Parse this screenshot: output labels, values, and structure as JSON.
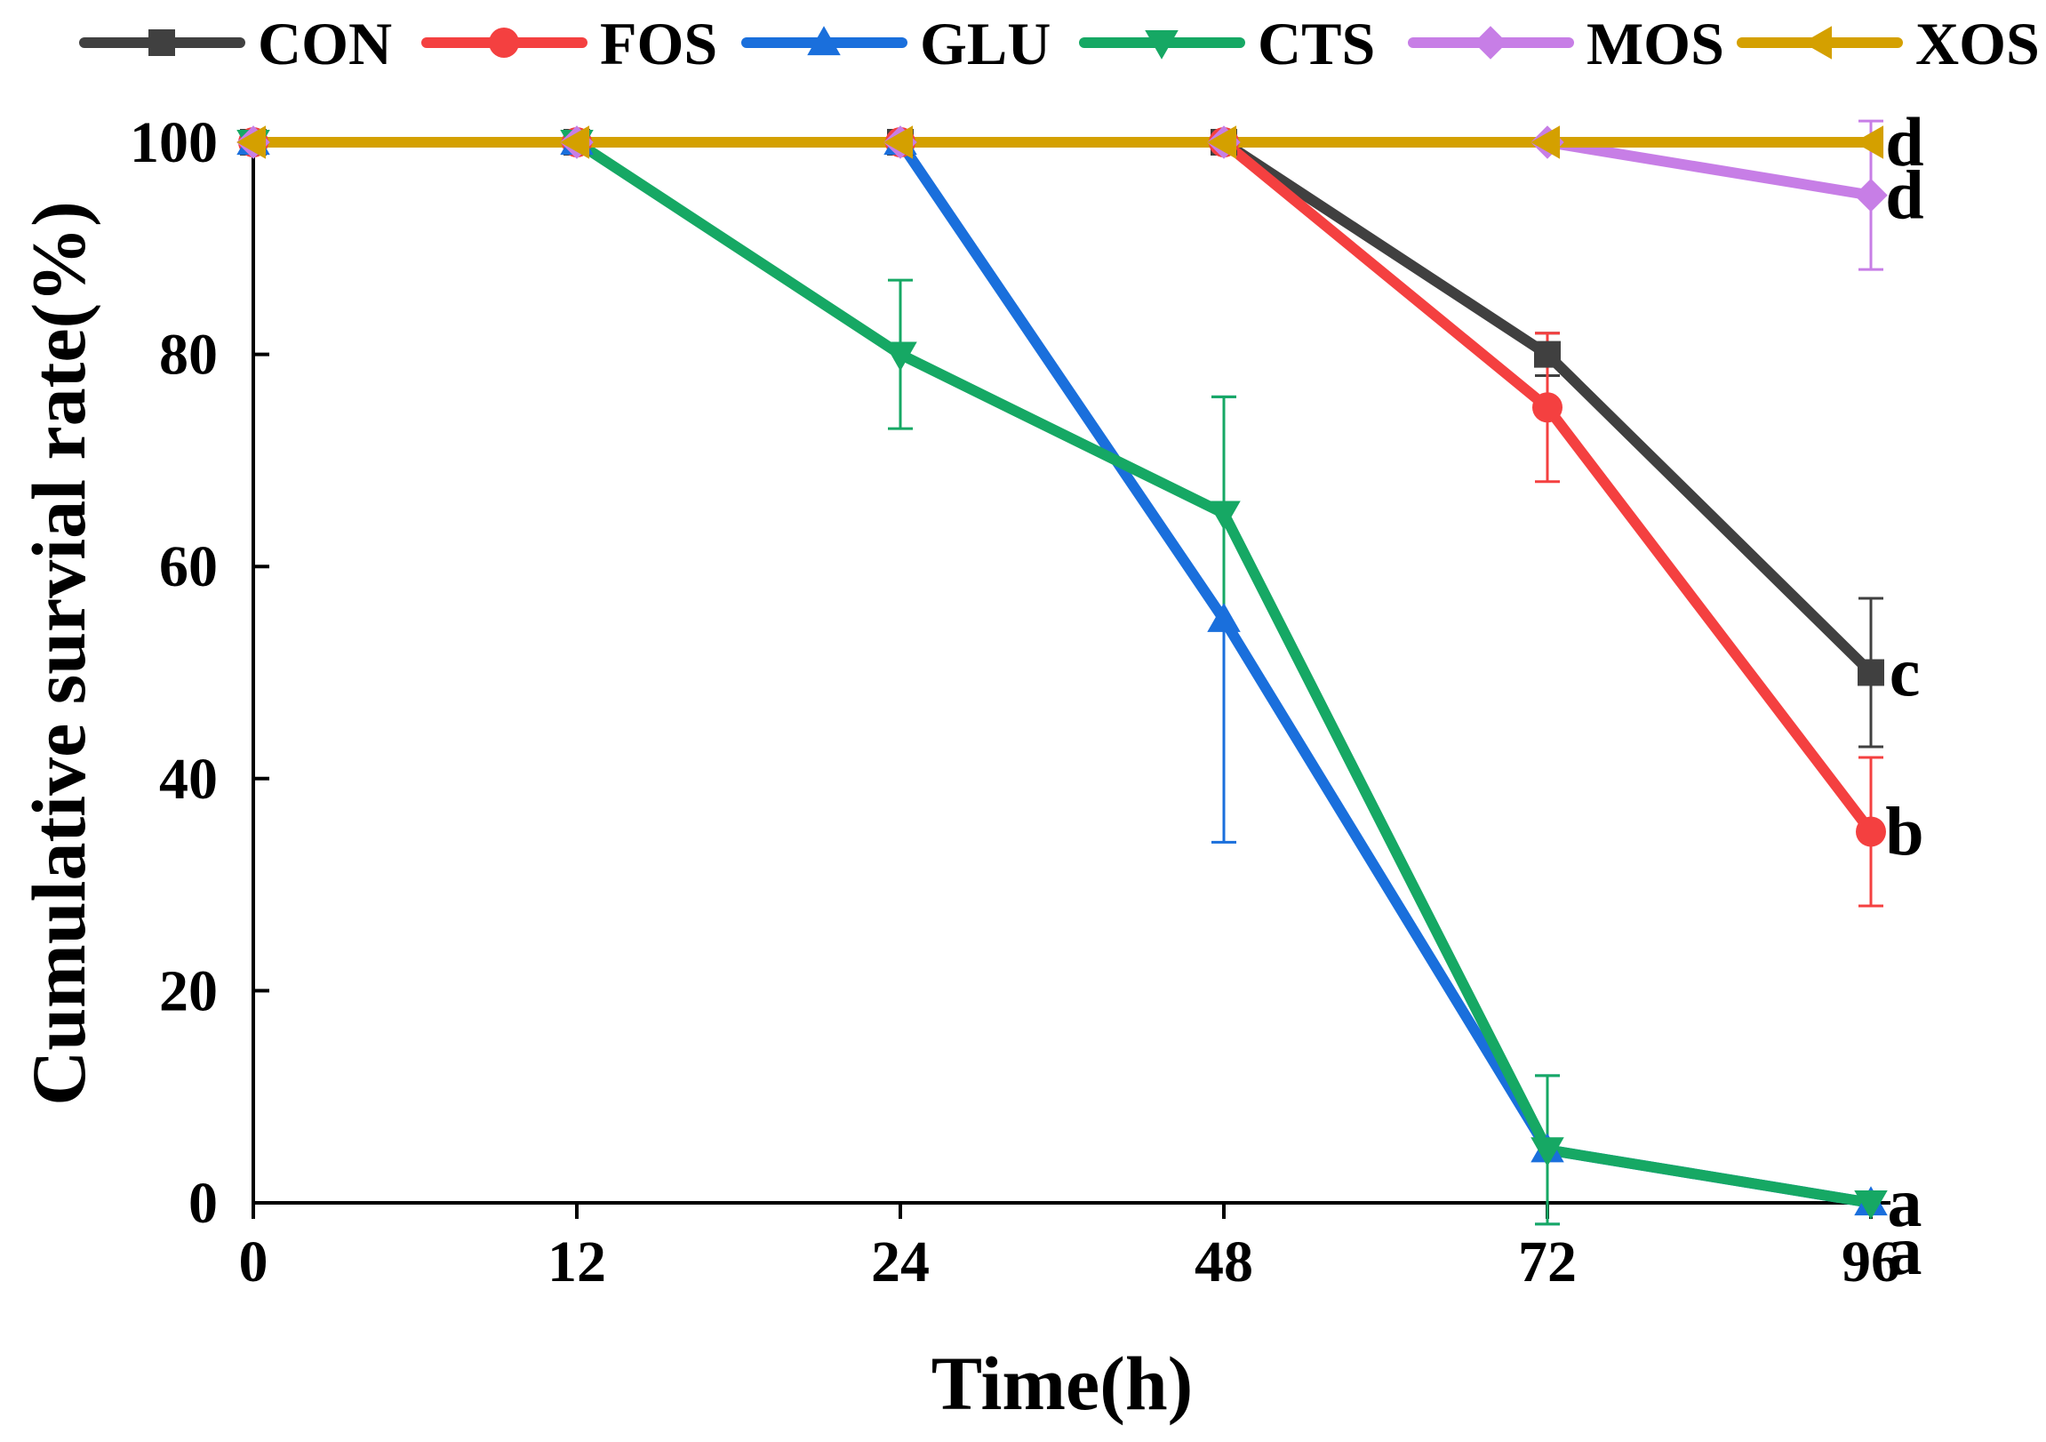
{
  "chart_data": {
    "type": "line",
    "xlabel": "Time(h)",
    "ylabel": "Cumulative survial rate(%)",
    "ylim": [
      0,
      100
    ],
    "x_ticks": [
      "0",
      "12",
      "24",
      "48",
      "72",
      "96"
    ],
    "y_ticks": [
      0,
      20,
      40,
      60,
      80,
      100
    ],
    "legend_position": "top",
    "grid": false,
    "series": [
      {
        "name": "CON",
        "color": "#404040",
        "marker": "square",
        "values": [
          100,
          100,
          100,
          100,
          80,
          50
        ],
        "errors": [
          0,
          0,
          0,
          0,
          2,
          7
        ],
        "sig_label": "c"
      },
      {
        "name": "FOS",
        "color": "#f44040",
        "marker": "circle",
        "values": [
          100,
          100,
          100,
          100,
          75,
          35
        ],
        "errors": [
          0,
          0,
          0,
          0,
          7,
          7
        ],
        "sig_label": "b"
      },
      {
        "name": "GLU",
        "color": "#1a6fdc",
        "marker": "triangle-up",
        "values": [
          100,
          100,
          100,
          55,
          5,
          0
        ],
        "errors": [
          0,
          0,
          0,
          21,
          7,
          0
        ],
        "sig_label": "a"
      },
      {
        "name": "CTS",
        "color": "#16a864",
        "marker": "triangle-down",
        "values": [
          100,
          100,
          80,
          65,
          5,
          0
        ],
        "errors": [
          0,
          0,
          7,
          11,
          7,
          0
        ],
        "sig_label": "a"
      },
      {
        "name": "MOS",
        "color": "#c77ee6",
        "marker": "diamond",
        "values": [
          100,
          100,
          100,
          100,
          100,
          95
        ],
        "errors": [
          0,
          0,
          0,
          0,
          0,
          7
        ],
        "sig_label": "d"
      },
      {
        "name": "XOS",
        "color": "#d4a000",
        "marker": "triangle-left",
        "values": [
          100,
          100,
          100,
          100,
          100,
          100
        ],
        "errors": [
          0,
          0,
          0,
          0,
          0,
          0
        ],
        "sig_label": "d"
      }
    ]
  }
}
